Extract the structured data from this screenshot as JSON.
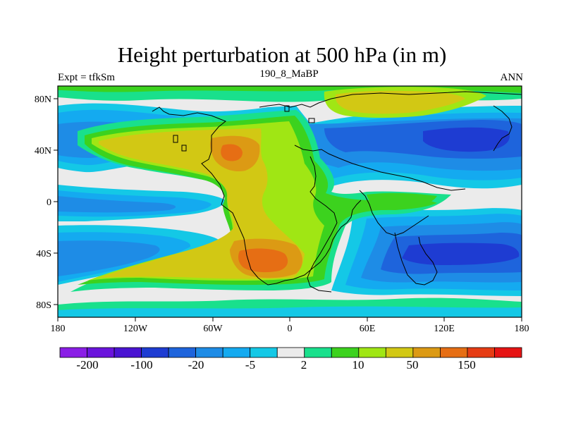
{
  "figure": {
    "title": "Height perturbation at 500 hPa (in m)",
    "left_string": "Expt = tfkSm",
    "center_string": "190_8_MaBP",
    "right_string": "ANN"
  },
  "map": {
    "projection": "cylindrical equidistant",
    "lon_range": [
      -180,
      180
    ],
    "lat_range": [
      -90,
      90
    ],
    "lon_ticks": [
      "180",
      "120W",
      "60W",
      "0",
      "60E",
      "120E",
      "180"
    ],
    "lat_ticks": [
      "80N",
      "40N",
      "0",
      "40S",
      "80S"
    ],
    "coastlines": true
  },
  "colorbar": {
    "colors": [
      "#8a1ee6",
      "#6a14dc",
      "#4a14d2",
      "#1e3cd2",
      "#1e64dc",
      "#1e8ce6",
      "#14aaf0",
      "#14c8e6",
      "#ebebeb",
      "#19e08c",
      "#3cd21e",
      "#a0e614",
      "#d2c814",
      "#dc9a14",
      "#e66e14",
      "#e63c14",
      "#e61414"
    ],
    "labels": [
      "-200",
      "-100",
      "-20",
      "-5",
      "2",
      "10",
      "50",
      "150"
    ]
  }
}
